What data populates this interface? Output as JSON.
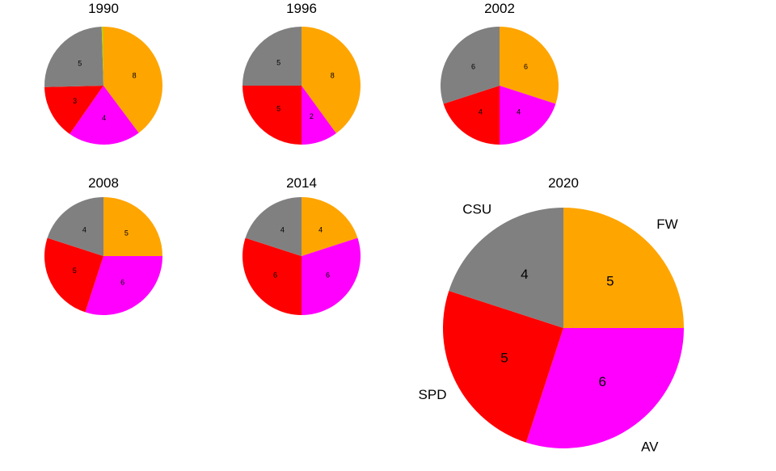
{
  "chart_data": [
    {
      "type": "pie",
      "title": "1990",
      "categories": [
        "FW",
        "AV",
        "SPD",
        "CSU",
        "Other"
      ],
      "values": [
        8,
        4,
        3,
        5,
        0.1
      ],
      "colors": [
        "#FFA500",
        "#FF00FF",
        "#FF0000",
        "#808080",
        "#C8C800"
      ],
      "labels": [
        "8",
        "4",
        "3",
        "5",
        ""
      ]
    },
    {
      "type": "pie",
      "title": "1996",
      "categories": [
        "FW",
        "AV",
        "SPD",
        "CSU"
      ],
      "values": [
        8,
        2,
        5,
        5
      ],
      "colors": [
        "#FFA500",
        "#FF00FF",
        "#FF0000",
        "#808080"
      ],
      "labels": [
        "8",
        "2",
        "5",
        "5"
      ]
    },
    {
      "type": "pie",
      "title": "2002",
      "categories": [
        "FW",
        "AV",
        "SPD",
        "CSU"
      ],
      "values": [
        6,
        4,
        4,
        6
      ],
      "colors": [
        "#FFA500",
        "#FF00FF",
        "#FF0000",
        "#808080"
      ],
      "labels": [
        "6",
        "4",
        "4",
        "6"
      ]
    },
    {
      "type": "pie",
      "title": "2008",
      "categories": [
        "FW",
        "AV",
        "SPD",
        "CSU"
      ],
      "values": [
        5,
        6,
        5,
        4
      ],
      "colors": [
        "#FFA500",
        "#FF00FF",
        "#FF0000",
        "#808080"
      ],
      "labels": [
        "5",
        "6",
        "5",
        "4"
      ]
    },
    {
      "type": "pie",
      "title": "2014",
      "categories": [
        "FW",
        "AV",
        "SPD",
        "CSU"
      ],
      "values": [
        4,
        6,
        6,
        4
      ],
      "colors": [
        "#FFA500",
        "#FF00FF",
        "#FF0000",
        "#808080"
      ],
      "labels": [
        "4",
        "6",
        "6",
        "4"
      ]
    },
    {
      "type": "pie",
      "title": "2020",
      "categories": [
        "FW",
        "AV",
        "SPD",
        "CSU"
      ],
      "values": [
        5,
        6,
        5,
        4
      ],
      "colors": [
        "#FFA500",
        "#FF00FF",
        "#FF0000",
        "#808080"
      ],
      "labels": [
        "5",
        "6",
        "5",
        "4"
      ],
      "category_labels_shown": true
    }
  ]
}
